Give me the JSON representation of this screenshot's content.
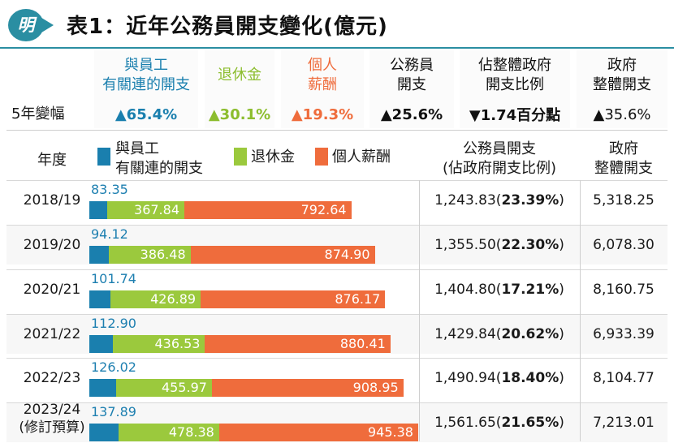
{
  "title": "表1：近年公務員開支變化(億元)",
  "badge": "明",
  "colors": {
    "employee_related": "#1a7fae",
    "pension": "#9bc93d",
    "salary": "#ef6c3c",
    "accent": "#2a8ea2"
  },
  "summary": {
    "row_label": "5年變幅",
    "columns": [
      {
        "header": "與員工\n有關連的開支",
        "value": "▲65.4%",
        "color": "#1a7fae"
      },
      {
        "header": "退休金",
        "value": "▲30.1%",
        "color": "#8cbd2e"
      },
      {
        "header": "個人\n薪酬",
        "value": "▲19.3%",
        "color": "#ef6c3c"
      },
      {
        "header": "公務員\n開支",
        "value": "▲25.6%",
        "color": "#111111"
      },
      {
        "header": "佔整體政府\n開支比例",
        "value": "▼1.74百分點",
        "color": "#111111"
      },
      {
        "header": "政府\n整體開支",
        "value": "▲35.6%",
        "color": "#111111"
      }
    ]
  },
  "table_headers": {
    "year": "年度",
    "legend_employee": "與員工\n有關連的開支",
    "legend_pension": "退休金",
    "legend_salary": "個人薪酬",
    "civil_service": "公務員開支\n(佔政府開支比例)",
    "gov_total": "政府\n整體開支"
  },
  "chart_data": {
    "type": "bar",
    "stacked": true,
    "orientation": "horizontal",
    "title": "表1：近年公務員開支變化(億元)",
    "categories": [
      "2018/19",
      "2019/20",
      "2020/21",
      "2021/22",
      "2022/23",
      "2023/24\n(修訂預算)"
    ],
    "series": [
      {
        "name": "與員工有關連的開支",
        "values": [
          83.35,
          94.12,
          101.74,
          112.9,
          126.02,
          137.89
        ],
        "labels": [
          "83.35",
          "94.12",
          "101.74",
          "112.90",
          "126.02",
          "137.89"
        ]
      },
      {
        "name": "退休金",
        "values": [
          367.84,
          386.48,
          426.89,
          436.53,
          455.97,
          478.38
        ],
        "labels": [
          "367.84",
          "386.48",
          "426.89",
          "436.53",
          "455.97",
          "478.38"
        ]
      },
      {
        "name": "個人薪酬",
        "values": [
          792.64,
          874.9,
          876.17,
          880.41,
          908.95,
          945.38
        ],
        "labels": [
          "792.64",
          "874.90",
          "876.17",
          "880.41",
          "908.95",
          "945.38"
        ]
      }
    ],
    "civil_service_total": [
      "1,243.83",
      "1,355.50",
      "1,404.80",
      "1,429.84",
      "1,490.94",
      "1,561.65"
    ],
    "share_of_gov": [
      "23.39%",
      "22.30%",
      "17.21%",
      "20.62%",
      "18.40%",
      "21.65%"
    ],
    "gov_total": [
      "5,318.25",
      "6,078.30",
      "8,160.75",
      "6,933.39",
      "8,104.77",
      "7,213.01"
    ]
  }
}
